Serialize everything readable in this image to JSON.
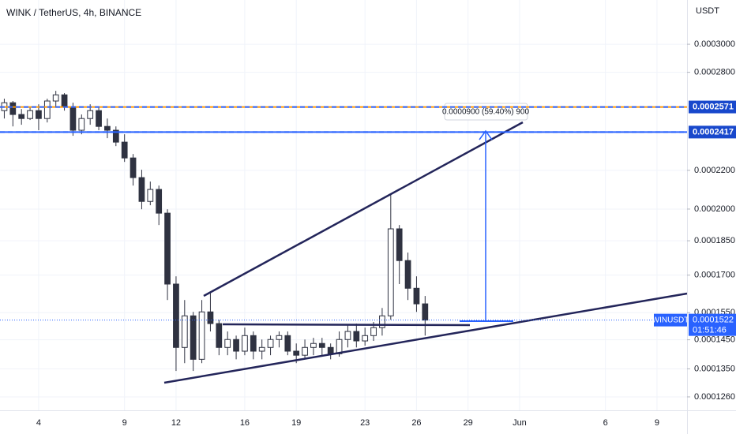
{
  "chart_data": {
    "type": "candlestick",
    "title": "WINK / TetherUS, 4h, BINANCE",
    "y_unit": "USDT",
    "log_scale": true,
    "grid": true,
    "up_color": "#ffffff",
    "down_color": "#2f3241",
    "categories": [
      null,
      null,
      null,
      null,
      "4",
      null,
      null,
      null,
      null,
      null,
      null,
      null,
      null,
      null,
      "9",
      null,
      null,
      null,
      null,
      null,
      "12",
      null,
      null,
      null,
      null,
      null,
      null,
      null,
      "16",
      null,
      null,
      null,
      null,
      null,
      "19",
      null,
      null,
      null,
      null,
      null,
      null,
      null,
      "23",
      null,
      null,
      null,
      null,
      null,
      "26",
      null,
      null,
      null,
      null,
      null,
      "29",
      null,
      null,
      null,
      null,
      null,
      "Jun",
      null,
      null,
      null,
      null,
      null,
      null,
      null,
      null,
      null,
      "6",
      null,
      null,
      null,
      null,
      null,
      "9",
      null,
      null,
      null
    ],
    "open": [
      0.0002548,
      0.0002598,
      0.0002524,
      0.0002499,
      0.0002548,
      0.0002499,
      0.0002609,
      0.0002649,
      0.0002573,
      0.0002428,
      0.0002499,
      0.0002548,
      0.0002451,
      0.0002428,
      0.0002358,
      0.0002268,
      0.0002161,
      0.0002038,
      0.0002099,
      0.000198,
      0.0001663,
      0.0001423,
      0.0001538,
      0.0001382,
      0.0001553,
      0.0001509,
      0.0001423,
      0.0001451,
      0.000141,
      0.0001465,
      0.000141,
      0.0001423,
      0.0001451,
      0.0001465,
      0.000141,
      0.0001396,
      0.0001423,
      0.0001437,
      0.0001423,
      0.0001401,
      0.0001451,
      0.000148,
      0.0001446,
      0.0001465,
      0.0001494,
      0.0001538,
      0.0001905,
      0.0001762,
      0.0001646,
      0.0001584,
      null,
      null,
      null,
      null,
      null,
      null,
      null,
      null,
      null,
      null,
      null,
      null,
      null,
      null,
      null,
      null,
      null,
      null,
      null,
      null,
      null,
      null,
      null,
      null,
      null,
      null,
      null,
      null,
      null,
      null
    ],
    "high": [
      0.0002624,
      0.0002609,
      0.0002558,
      0.0002573,
      0.0002588,
      0.0002624,
      0.0002675,
      0.000266,
      0.0002598,
      0.0002524,
      0.0002588,
      0.0002573,
      0.0002499,
      0.0002451,
      0.0002404,
      0.000229,
      0.0002203,
      0.000214,
      0.0002119,
      0.0001999,
      0.0001695,
      0.0001599,
      0.0001553,
      0.0001599,
      0.0001631,
      0.0001523,
      0.000148,
      0.0001465,
      0.0001494,
      0.000148,
      0.0001451,
      0.0001465,
      0.000148,
      0.000148,
      0.0001437,
      0.0001451,
      0.0001457,
      0.0001457,
      0.0001437,
      0.000148,
      0.0001503,
      0.0001509,
      0.0001494,
      0.0001515,
      0.0001568,
      0.0002078,
      0.0001923,
      0.0001797,
      0.0001695,
      0.0001615,
      null,
      null,
      null,
      null,
      null,
      null,
      null,
      null,
      null,
      null,
      null,
      null,
      null,
      null,
      null,
      null,
      null,
      null,
      null,
      null,
      null,
      null,
      null,
      null,
      null,
      null,
      null,
      null,
      null,
      null
    ],
    "low": [
      0.0002499,
      0.0002451,
      0.0002461,
      0.000249,
      0.0002428,
      0.0002475,
      0.0002573,
      0.0002548,
      0.0002395,
      0.0002404,
      0.0002461,
      0.0002428,
      0.0002381,
      0.0002335,
      0.0002246,
      0.0002119,
      0.0001999,
      0.0002019,
      0.0001923,
      0.0001599,
      0.0001343,
      0.0001369,
      0.0001343,
      0.0001369,
      0.000148,
      0.0001396,
      0.0001396,
      0.0001382,
      0.0001396,
      0.0001382,
      0.0001382,
      0.0001396,
      0.0001423,
      0.0001396,
      0.0001369,
      0.0001382,
      0.0001396,
      0.0001396,
      0.0001382,
      0.0001391,
      0.0001423,
      0.0001423,
      0.0001429,
      0.0001446,
      0.0001465,
      0.0001523,
      0.0001663,
      0.0001599,
      0.0001553,
      0.0001465,
      null,
      null,
      null,
      null,
      null,
      null,
      null,
      null,
      null,
      null,
      null,
      null,
      null,
      null,
      null,
      null,
      null,
      null,
      null,
      null,
      null,
      null,
      null,
      null,
      null,
      null,
      null,
      null,
      null,
      null
    ],
    "close": [
      0.0002598,
      0.0002524,
      0.0002499,
      0.0002548,
      0.0002499,
      0.0002609,
      0.0002649,
      0.0002573,
      0.0002428,
      0.0002499,
      0.0002548,
      0.0002451,
      0.0002428,
      0.0002358,
      0.0002268,
      0.0002161,
      0.0002038,
      0.0002099,
      0.000198,
      0.0001663,
      0.0001423,
      0.0001538,
      0.0001382,
      0.0001553,
      0.0001509,
      0.0001423,
      0.0001451,
      0.000141,
      0.0001465,
      0.000141,
      0.0001423,
      0.0001451,
      0.0001465,
      0.000141,
      0.0001396,
      0.0001423,
      0.0001437,
      0.0001423,
      0.0001401,
      0.0001451,
      0.000148,
      0.0001446,
      0.0001465,
      0.0001494,
      0.0001538,
      0.0001905,
      0.0001762,
      0.0001646,
      0.0001584,
      0.0001522,
      null,
      null,
      null,
      null,
      null,
      null,
      null,
      null,
      null,
      null,
      null,
      null,
      null,
      null,
      null,
      null,
      null,
      null,
      null,
      null,
      null,
      null,
      null,
      null,
      null,
      null,
      null,
      null,
      null,
      null
    ],
    "ylim": [
      0.0001219,
      0.0003345
    ],
    "yticks": [
      {
        "value": 0.0003,
        "label": "0.0003000"
      },
      {
        "value": 0.00028,
        "label": "0.0002800"
      },
      {
        "value": 0.00022,
        "label": "0.0002200"
      },
      {
        "value": 0.0002,
        "label": "0.0002000"
      },
      {
        "value": 0.000185,
        "label": "0.0001850"
      },
      {
        "value": 0.00017,
        "label": "0.0001700"
      },
      {
        "value": 0.000155,
        "label": "0.0001550"
      },
      {
        "value": 0.000145,
        "label": "0.0001450"
      },
      {
        "value": 0.000135,
        "label": "0.0001350"
      },
      {
        "value": 0.000126,
        "label": "0.0001260"
      }
    ],
    "price_lines": [
      {
        "value": 0.0002571,
        "color": "#ff9800"
      },
      {
        "value": 0.0002417,
        "color": "#2962ff"
      }
    ],
    "symbol_label": "WINUSDT",
    "last_price": 0.0001522,
    "countdown": "01:51:46",
    "measure_label": "0.0000900 (59.40%) 900"
  }
}
